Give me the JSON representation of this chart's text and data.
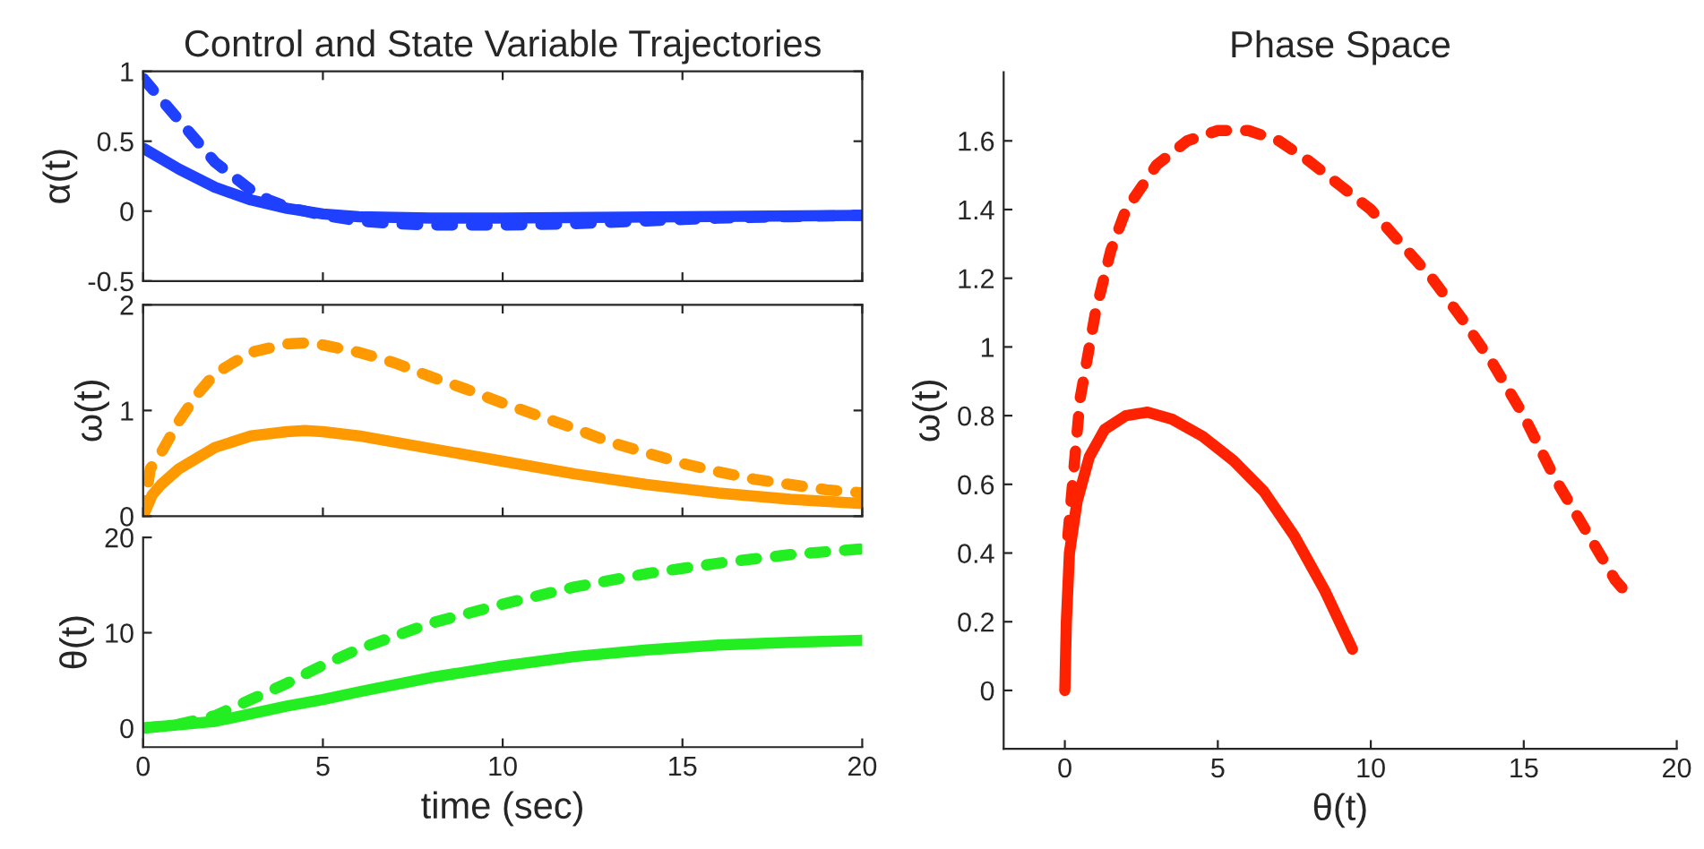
{
  "chart_data": [
    {
      "type": "line",
      "title": "Control and State Variable Trajectories",
      "ylabel": "α(t)",
      "xlim": [
        0,
        20
      ],
      "xticks": [
        0,
        5,
        10,
        15,
        20
      ],
      "ylim": [
        -0.5,
        1
      ],
      "yticks": [
        -0.5,
        0,
        0.5,
        1
      ],
      "tick_labels": "y",
      "series": [
        {
          "color": "#2040ff",
          "line_style": "solid",
          "x": [
            0,
            1,
            2,
            3,
            4,
            5,
            6,
            8,
            10,
            15,
            20
          ],
          "values": [
            0.45,
            0.3,
            0.17,
            0.08,
            0.02,
            -0.02,
            -0.04,
            -0.05,
            -0.05,
            -0.04,
            -0.03
          ]
        },
        {
          "color": "#2040ff",
          "line_style": "dashed",
          "x": [
            0,
            0.5,
            1,
            1.5,
            2,
            2.5,
            3,
            3.5,
            4,
            5,
            6,
            7,
            8,
            10,
            12,
            14,
            16,
            18,
            20
          ],
          "values": [
            0.95,
            0.8,
            0.65,
            0.5,
            0.35,
            0.25,
            0.15,
            0.08,
            0.03,
            -0.03,
            -0.07,
            -0.09,
            -0.1,
            -0.1,
            -0.09,
            -0.07,
            -0.05,
            -0.04,
            -0.03
          ]
        }
      ]
    },
    {
      "type": "line",
      "ylabel": "ω(t)",
      "xlim": [
        0,
        20
      ],
      "xticks": [
        0,
        5,
        10,
        15,
        20
      ],
      "ylim": [
        0,
        2
      ],
      "yticks": [
        0,
        1,
        2
      ],
      "tick_labels": "y",
      "series": [
        {
          "color": "#ff9900",
          "line_style": "solid",
          "x": [
            0,
            0.25,
            0.5,
            1,
            2,
            3,
            4,
            4.5,
            5,
            6,
            8,
            10,
            12,
            14,
            16,
            18,
            20
          ],
          "values": [
            0,
            0.2,
            0.3,
            0.45,
            0.65,
            0.76,
            0.8,
            0.81,
            0.8,
            0.76,
            0.64,
            0.52,
            0.4,
            0.3,
            0.22,
            0.16,
            0.12
          ]
        },
        {
          "color": "#ff9900",
          "line_style": "dashed",
          "x": [
            0,
            0.2,
            0.5,
            1,
            1.5,
            2,
            3,
            4,
            4.5,
            5,
            6,
            7,
            8,
            9,
            10,
            11,
            12,
            13,
            14,
            15,
            16,
            17,
            18,
            19,
            20
          ],
          "values": [
            0,
            0.45,
            0.6,
            0.9,
            1.15,
            1.35,
            1.55,
            1.63,
            1.64,
            1.62,
            1.55,
            1.45,
            1.32,
            1.2,
            1.07,
            0.95,
            0.83,
            0.7,
            0.6,
            0.5,
            0.42,
            0.35,
            0.3,
            0.25,
            0.22
          ]
        }
      ]
    },
    {
      "type": "line",
      "xlabel": "time (sec)",
      "ylabel": "θ(t)",
      "xlim": [
        0,
        20
      ],
      "xticks": [
        0,
        5,
        10,
        15,
        20
      ],
      "ylim": [
        -2,
        20
      ],
      "yticks": [
        0,
        10,
        20
      ],
      "series": [
        {
          "color": "#22ee22",
          "line_style": "solid",
          "x": [
            0,
            2,
            4,
            5,
            6,
            8,
            10,
            12,
            14,
            16,
            18,
            20
          ],
          "values": [
            0,
            0.7,
            2.3,
            3.0,
            3.8,
            5.3,
            6.5,
            7.5,
            8.2,
            8.7,
            9.0,
            9.2
          ]
        },
        {
          "color": "#22ee22",
          "line_style": "dashed",
          "x": [
            0,
            1,
            2,
            3,
            4,
            5,
            6,
            8,
            10,
            12,
            14,
            16,
            18,
            20
          ],
          "values": [
            0,
            0.4,
            1.3,
            3,
            4.7,
            6.6,
            8.3,
            11,
            13,
            14.8,
            16.2,
            17.3,
            18.2,
            18.8
          ]
        }
      ]
    },
    {
      "type": "line",
      "title": "Phase Space",
      "xlabel": "θ(t)",
      "ylabel": "ω(t)",
      "xlim": [
        -2,
        20
      ],
      "xticks": [
        0,
        5,
        10,
        15,
        20
      ],
      "ylim": [
        -0.17,
        1.8
      ],
      "yticks": [
        0,
        0.2,
        0.4,
        0.6,
        0.8,
        1,
        1.2,
        1.4,
        1.6
      ],
      "series": [
        {
          "color": "#ff2200",
          "line_style": "solid",
          "x": [
            0,
            0.05,
            0.15,
            0.4,
            0.8,
            1.3,
            2,
            2.7,
            3.5,
            4.5,
            5.5,
            6.5,
            7.5,
            8.5,
            9.4
          ],
          "values": [
            0,
            0.2,
            0.4,
            0.55,
            0.68,
            0.76,
            0.8,
            0.81,
            0.79,
            0.74,
            0.67,
            0.58,
            0.45,
            0.29,
            0.12
          ]
        },
        {
          "color": "#ff2200",
          "line_style": "dashed",
          "x": [
            0.1,
            0.5,
            1,
            1.5,
            2,
            3,
            4,
            5,
            6,
            7,
            8,
            9,
            10,
            11,
            12,
            13,
            14,
            15,
            16,
            17,
            18,
            18.6
          ],
          "values": [
            0.45,
            0.85,
            1.1,
            1.28,
            1.4,
            1.53,
            1.6,
            1.63,
            1.63,
            1.6,
            1.54,
            1.47,
            1.4,
            1.3,
            1.2,
            1.08,
            0.95,
            0.8,
            0.62,
            0.47,
            0.32,
            0.26
          ]
        }
      ]
    }
  ]
}
